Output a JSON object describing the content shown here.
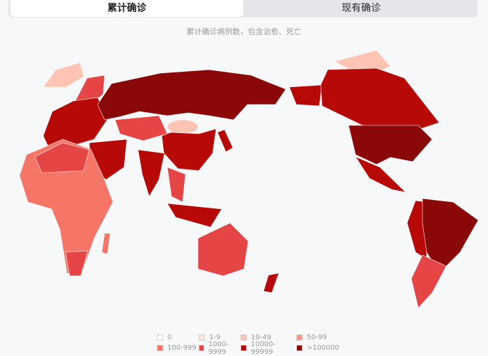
{
  "tabs": [
    "累计确诊",
    "现有确诊"
  ],
  "subtitle": "累计确诊病例数，包含治愈、死亡",
  "legend": [
    {
      "label": "0",
      "color": "#ffffff"
    },
    {
      "label": "1-9",
      "color": "#ffe5db"
    },
    {
      "label": "10-49",
      "color": "#ffc4b3"
    },
    {
      "label": "50-99",
      "color": "#ff9985"
    },
    {
      "label": "100-999",
      "color": "#f57567"
    },
    {
      "label": "1000-9999",
      "color": "#e64546"
    },
    {
      "label": "10000-99999",
      "color": "#b80909"
    },
    {
      "label": ">100000",
      "color": "#8a0808"
    }
  ]
}
